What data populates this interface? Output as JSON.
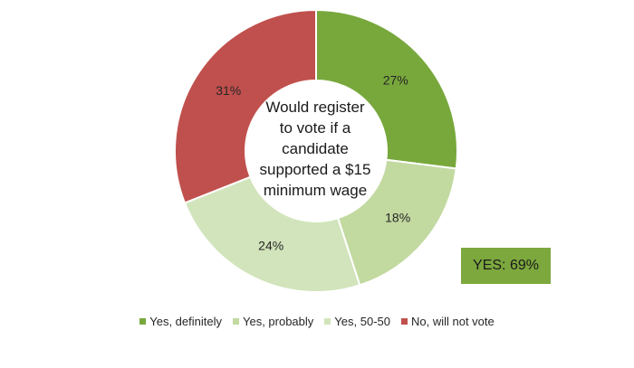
{
  "chart_data": {
    "type": "pie",
    "donut": true,
    "center_text": [
      "Would register",
      "to vote if a",
      "candidate",
      "supported a $15",
      "minimum wage"
    ],
    "slices": [
      {
        "name": "Yes, definitely",
        "value": 27,
        "label": "27%",
        "color": "#78a83c"
      },
      {
        "name": "Yes, probably",
        "value": 18,
        "label": "18%",
        "color": "#c2d9a0"
      },
      {
        "name": "Yes, 50-50",
        "value": 24,
        "label": "24%",
        "color": "#d2e4bb"
      },
      {
        "name": "No, will not vote",
        "value": 31,
        "label": "31%",
        "color": "#c0504d"
      }
    ],
    "legend_position": "bottom",
    "annotation": {
      "text": "YES: 69%",
      "color": "#7ca83e"
    }
  }
}
